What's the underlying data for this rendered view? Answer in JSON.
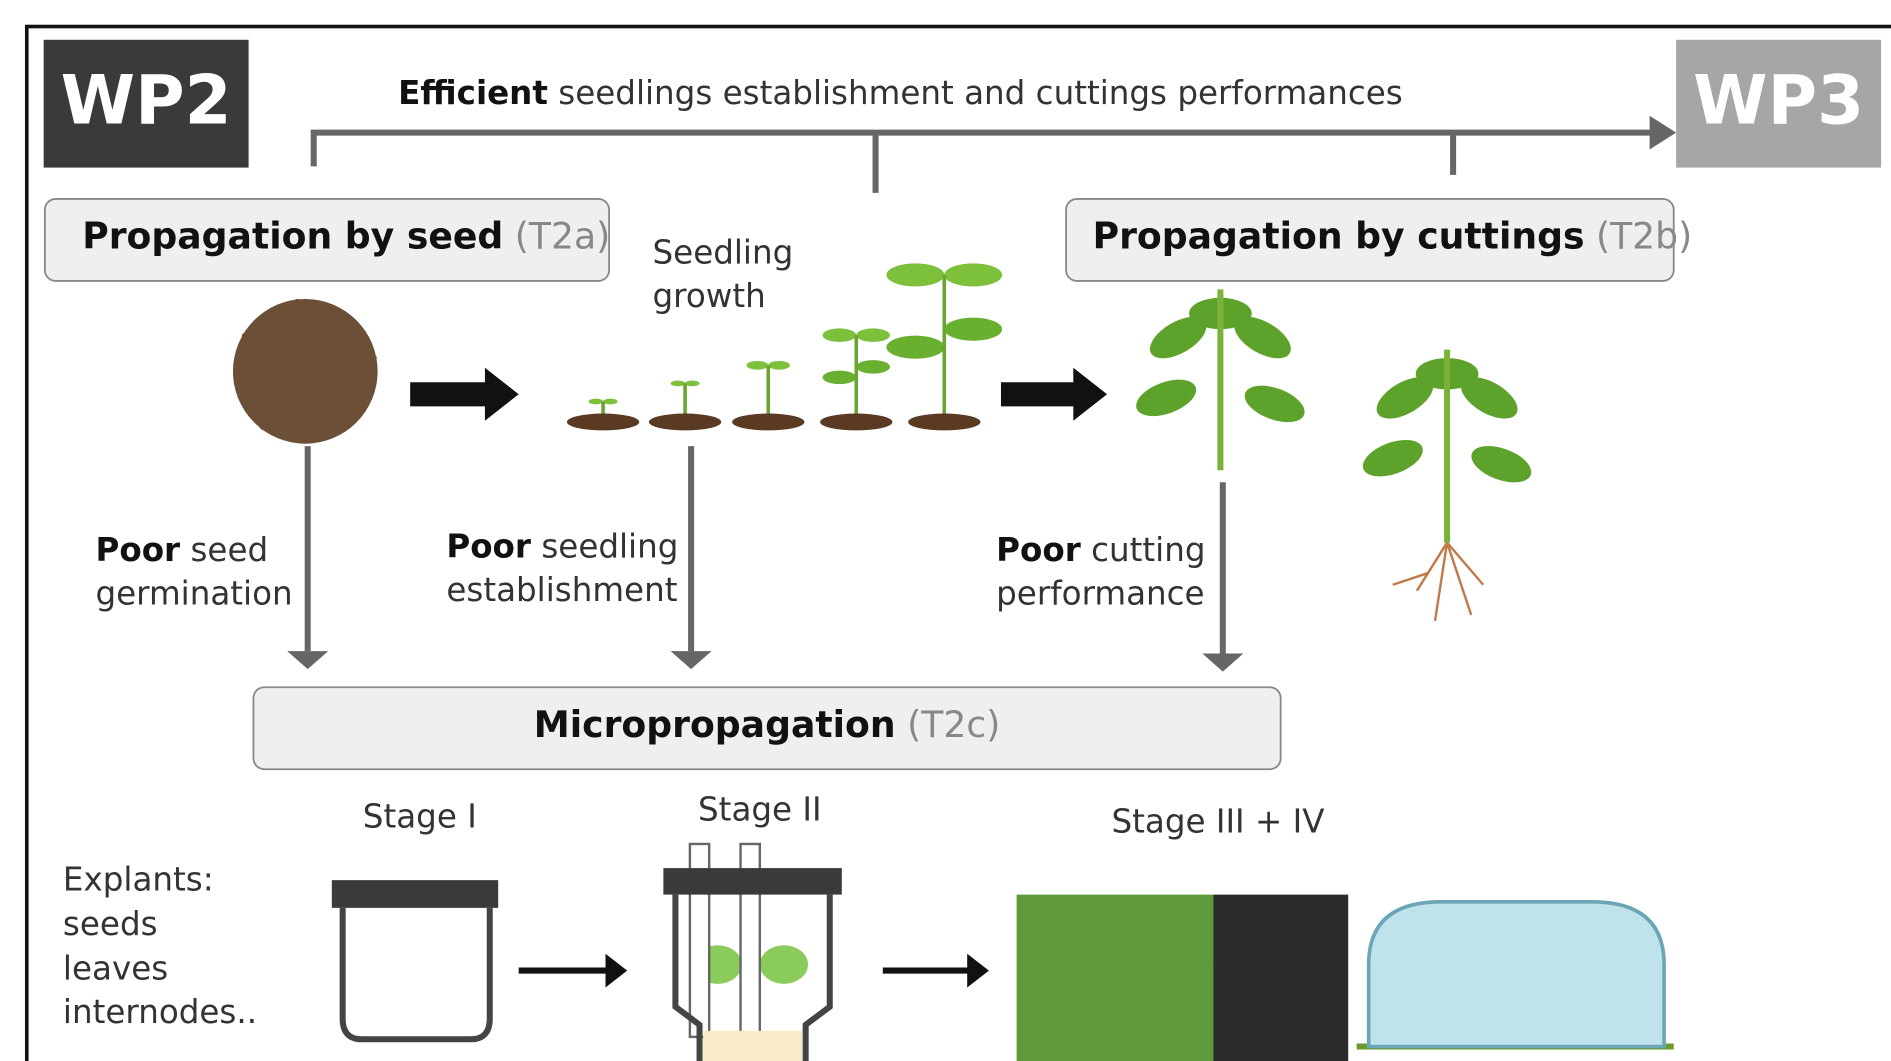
{
  "header": {
    "left_label": "WP2",
    "right_label": "WP3",
    "arrow_label": {
      "bold": "Efficient",
      "text": "seedlings establishment and cuttings performances"
    }
  },
  "boxes": [
    {
      "title": "Propagation by seed",
      "code": "(T2a)"
    },
    {
      "title": "Propagation by cuttings",
      "code": "(T2b)"
    },
    {
      "title": "Micropropagation",
      "code": "(T2c)"
    }
  ],
  "seedling_label": [
    "Seedling",
    "growth"
  ],
  "problems": [
    {
      "bold": "Poor",
      "line1": "seed",
      "line2": "germination"
    },
    {
      "bold": "Poor",
      "line1": "seedling",
      "line2": "establishment"
    },
    {
      "bold": "Poor",
      "line1": "cutting",
      "line2": "performance"
    }
  ],
  "stages": [
    "Stage I",
    "Stage II",
    "Stage III + IV"
  ],
  "explants": [
    "Explants:",
    "seeds",
    "leaves",
    "internodes.."
  ]
}
